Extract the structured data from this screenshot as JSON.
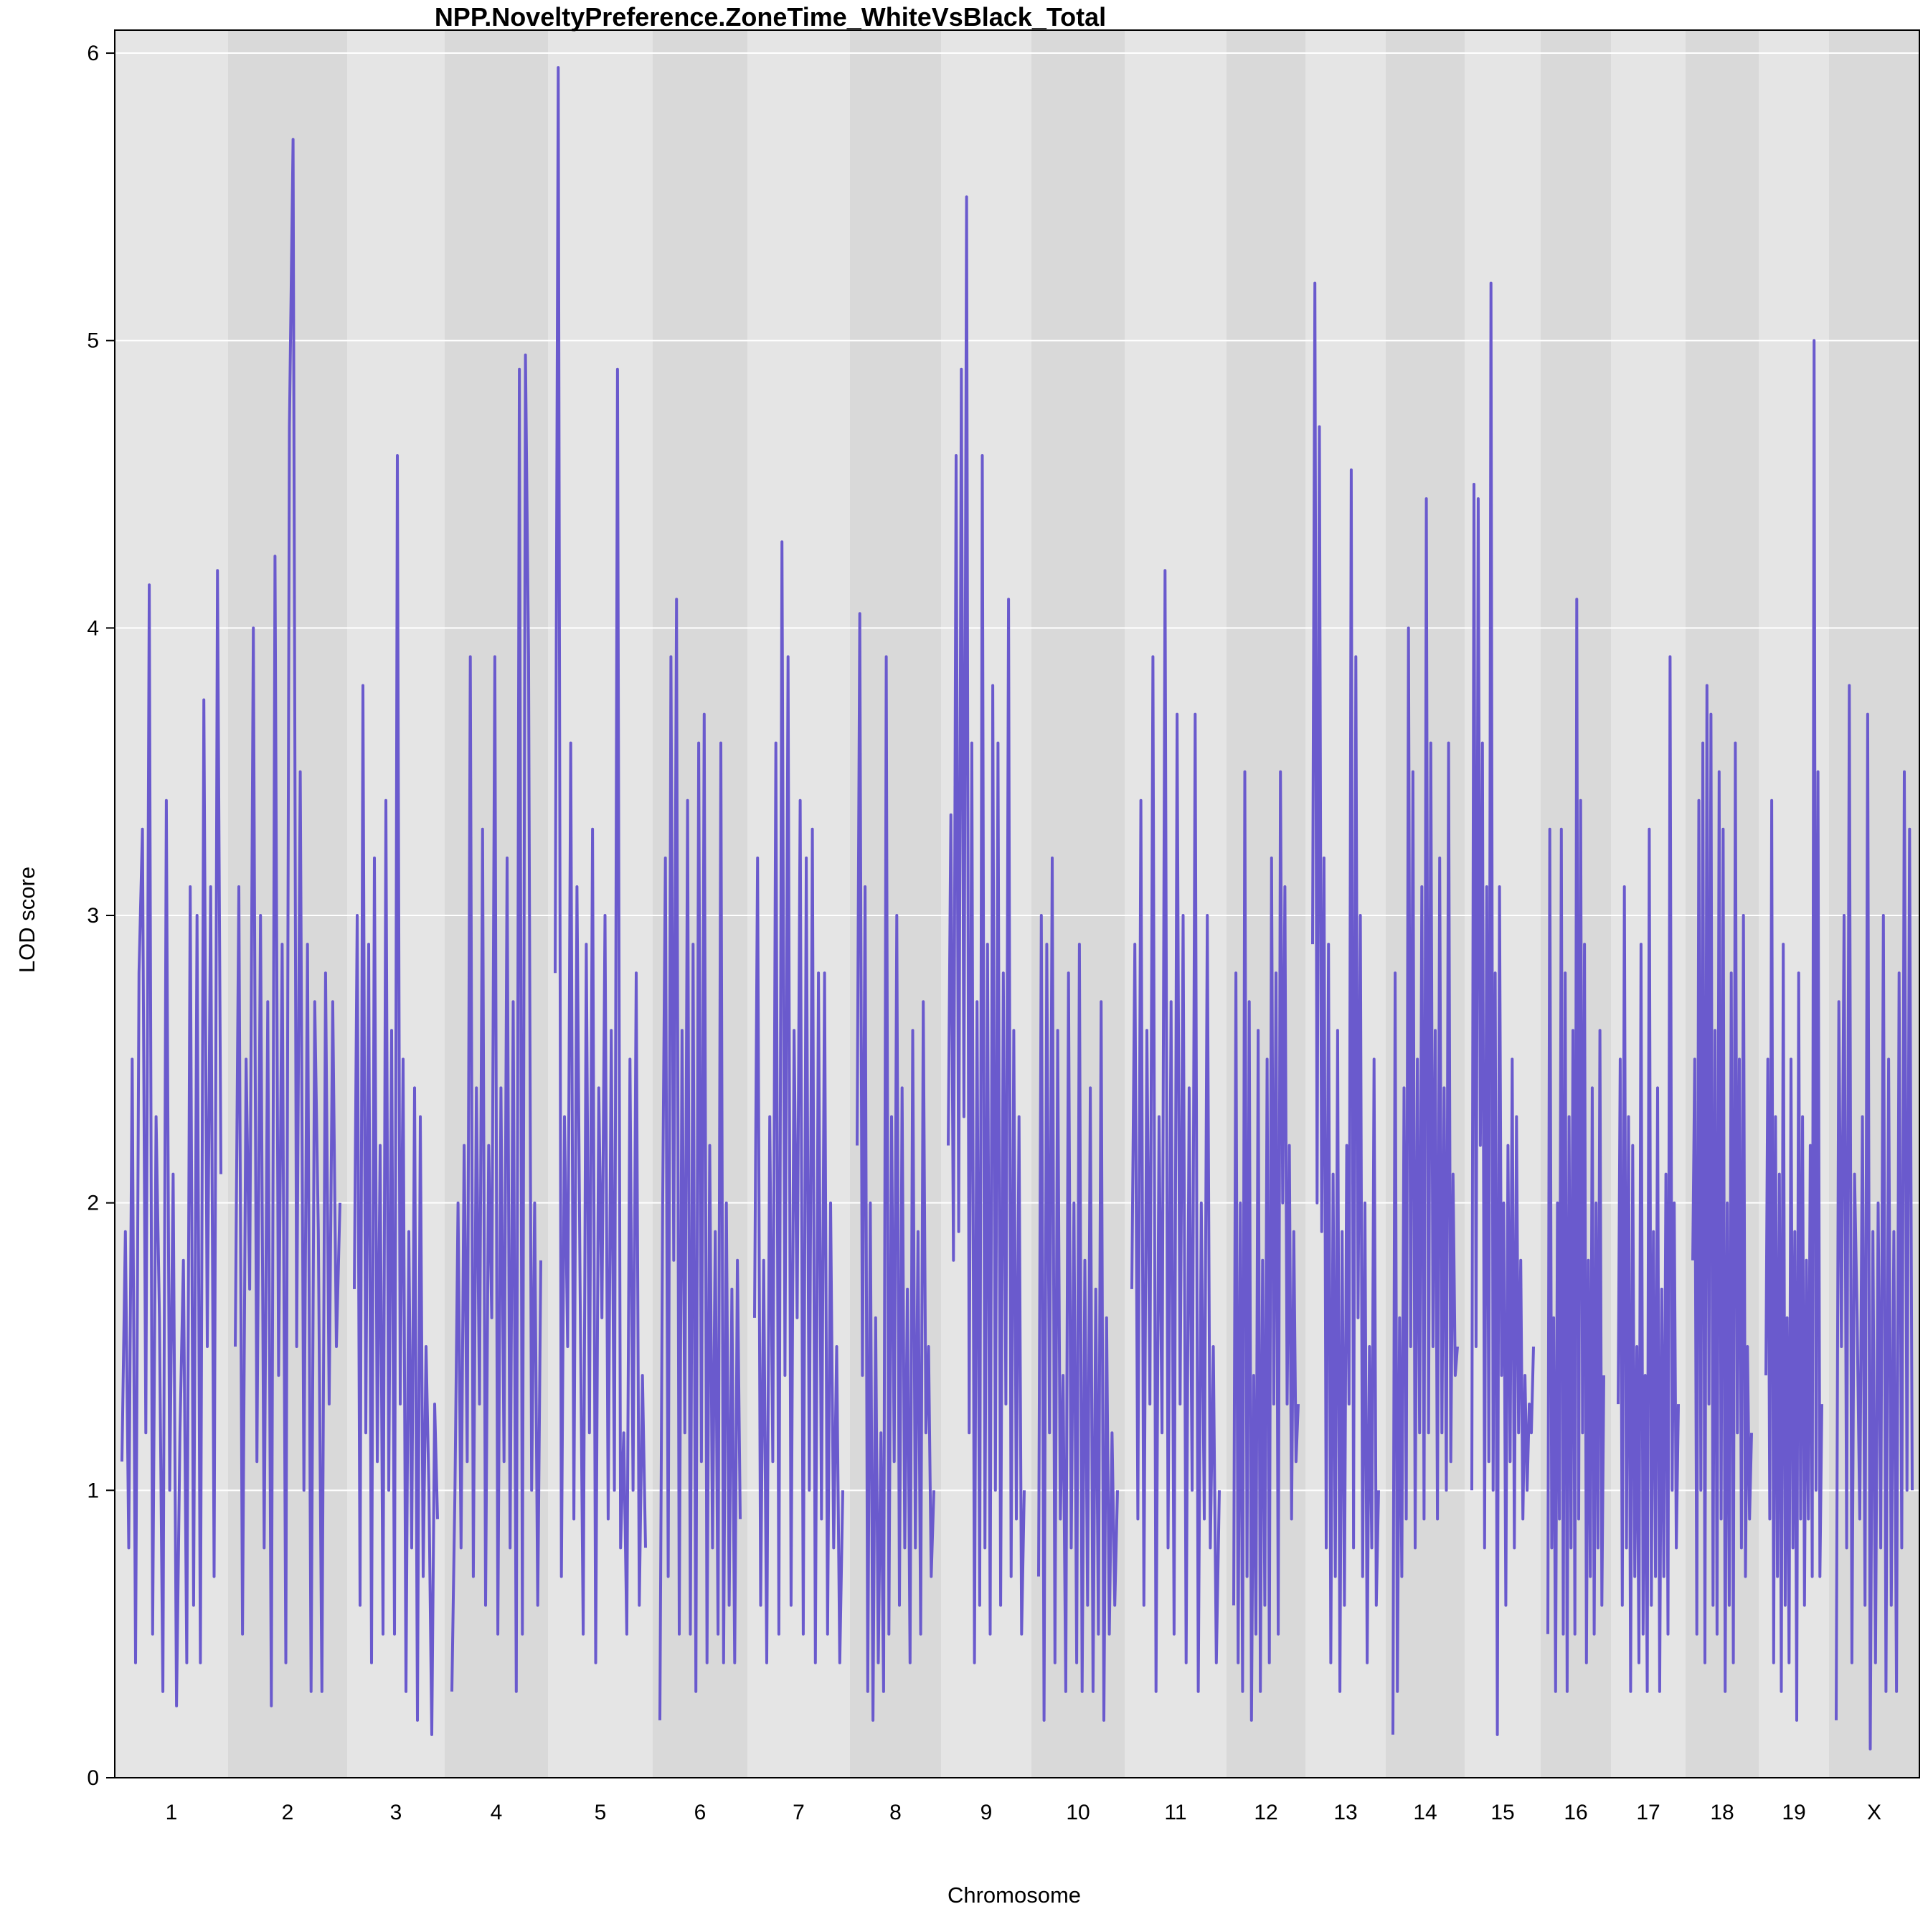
{
  "chart_data": {
    "type": "line",
    "title": "NPP.NoveltyPreference.ZoneTime_WhiteVsBlack_Total",
    "xlabel": "Chromosome",
    "ylabel": "LOD score",
    "ylim": [
      0,
      6.08
    ],
    "y_ticks": [
      "0",
      "1",
      "2",
      "3",
      "4",
      "5",
      "6"
    ],
    "grid": true,
    "background_bands": [
      "#e5e5e5",
      "#d9d9d9"
    ],
    "grid_color": "#ffffff",
    "line_color": "#6a5acd",
    "categories": [
      "1",
      "2",
      "3",
      "4",
      "5",
      "6",
      "7",
      "8",
      "9",
      "10",
      "11",
      "12",
      "13",
      "14",
      "15",
      "16",
      "17",
      "18",
      "19",
      "X"
    ],
    "series": [
      {
        "values": [
          [
            1.1,
            1.9,
            0.8,
            2.5,
            0.4,
            2.8,
            3.3,
            1.2,
            4.15,
            0.5,
            2.3,
            1.6,
            0.3,
            3.4,
            1.0,
            2.1,
            0.25,
            1.2,
            1.8,
            0.4,
            3.1,
            0.6,
            3.0,
            0.4,
            3.75,
            1.5,
            3.1,
            0.7,
            4.2,
            2.1
          ],
          [
            1.5,
            3.1,
            0.5,
            2.5,
            1.7,
            4.0,
            1.1,
            3.0,
            0.8,
            2.7,
            0.25,
            4.25,
            1.4,
            2.9,
            0.4,
            4.7,
            5.7,
            1.5,
            3.5,
            1.0,
            2.9,
            0.3,
            2.7,
            1.9,
            0.3,
            2.8,
            1.3,
            2.7,
            1.5,
            2.0
          ],
          [
            1.7,
            3.0,
            0.6,
            3.8,
            1.2,
            2.9,
            0.4,
            3.2,
            1.1,
            2.2,
            0.5,
            3.4,
            1.0,
            2.6,
            0.5,
            4.6,
            1.3,
            2.5,
            0.3,
            1.9,
            0.8,
            2.4,
            0.2,
            2.3,
            0.7,
            1.5,
            1.0,
            0.15,
            1.3,
            0.9
          ],
          [
            0.3,
            1.0,
            2.0,
            0.8,
            2.2,
            1.1,
            3.9,
            0.7,
            2.4,
            1.3,
            3.3,
            0.6,
            2.2,
            1.6,
            3.9,
            0.5,
            2.4,
            1.1,
            3.2,
            0.8,
            2.7,
            0.3,
            4.9,
            0.5,
            4.95,
            3.9,
            1.0,
            2.0,
            0.6,
            1.8
          ],
          [
            2.8,
            5.95,
            0.7,
            2.3,
            1.5,
            3.6,
            0.9,
            3.1,
            1.7,
            0.5,
            2.9,
            1.2,
            3.3,
            0.4,
            2.4,
            1.6,
            3.0,
            0.9,
            2.6,
            1.0,
            4.9,
            0.8,
            1.2,
            0.5,
            2.5,
            1.0,
            2.8,
            0.6,
            1.4,
            0.8
          ],
          [
            0.2,
            2.0,
            3.2,
            0.7,
            3.9,
            1.8,
            4.1,
            0.5,
            2.6,
            1.2,
            3.4,
            0.5,
            2.9,
            0.3,
            3.6,
            1.1,
            3.7,
            0.4,
            2.2,
            0.8,
            1.9,
            0.5,
            3.6,
            0.4,
            2.0,
            0.6,
            1.7,
            0.4,
            1.8,
            0.9
          ],
          [
            1.6,
            3.2,
            0.6,
            1.8,
            0.4,
            2.3,
            1.1,
            3.6,
            0.5,
            4.3,
            1.4,
            3.9,
            0.6,
            2.6,
            1.6,
            3.4,
            0.5,
            3.2,
            1.0,
            3.3,
            0.4,
            2.8,
            0.9,
            2.8,
            0.5,
            2.0,
            0.8,
            1.5,
            0.4,
            1.0
          ],
          [
            2.2,
            4.05,
            1.4,
            3.1,
            0.3,
            2.0,
            0.2,
            1.6,
            0.4,
            1.2,
            0.3,
            3.9,
            0.5,
            2.3,
            1.1,
            3.0,
            0.6,
            2.4,
            0.8,
            1.7,
            0.4,
            2.6,
            0.8,
            1.9,
            0.5,
            2.7,
            1.2,
            1.5,
            0.7,
            1.0
          ],
          [
            2.2,
            3.35,
            1.8,
            4.6,
            1.9,
            4.9,
            2.3,
            5.5,
            1.2,
            3.6,
            0.4,
            2.7,
            0.6,
            4.6,
            0.8,
            2.9,
            0.5,
            3.8,
            1.0,
            3.6,
            0.6,
            2.8,
            1.3,
            4.1,
            0.7,
            2.6,
            0.9,
            2.3,
            0.5,
            1.0
          ],
          [
            0.7,
            3.0,
            0.2,
            2.9,
            1.2,
            3.2,
            0.4,
            2.6,
            0.9,
            1.4,
            0.3,
            2.8,
            0.8,
            2.0,
            0.4,
            2.9,
            0.3,
            1.8,
            0.6,
            2.4,
            0.3,
            1.7,
            0.5,
            2.7,
            0.2,
            1.6,
            0.5,
            1.2,
            0.6,
            1.0
          ],
          [
            1.7,
            2.9,
            0.9,
            3.4,
            0.6,
            2.6,
            1.3,
            3.9,
            0.3,
            2.3,
            1.2,
            4.2,
            0.8,
            2.7,
            0.5,
            3.7,
            1.3,
            3.0,
            0.4,
            2.4,
            1.0,
            3.7,
            0.3,
            2.0,
            0.9,
            3.0,
            0.8,
            1.5,
            0.4,
            1.0
          ],
          [
            0.6,
            2.8,
            0.4,
            2.0,
            0.3,
            3.5,
            0.7,
            2.7,
            0.2,
            1.4,
            0.5,
            2.6,
            0.3,
            1.8,
            0.6,
            2.5,
            0.4,
            3.2,
            1.3,
            2.8,
            0.5,
            3.5,
            2.0,
            3.1,
            1.3,
            2.2,
            0.9,
            1.9,
            1.1,
            1.3
          ],
          [
            2.9,
            5.2,
            2.0,
            4.7,
            1.9,
            3.2,
            0.8,
            2.9,
            0.4,
            2.1,
            0.7,
            2.6,
            0.3,
            1.9,
            0.6,
            2.2,
            1.3,
            4.55,
            0.8,
            3.9,
            1.6,
            3.0,
            0.7,
            2.0,
            0.4,
            1.5,
            0.8,
            2.5,
            0.6,
            1.0
          ],
          [
            0.15,
            2.8,
            0.3,
            1.6,
            0.7,
            2.4,
            0.9,
            4.0,
            1.5,
            3.5,
            0.8,
            2.5,
            1.2,
            3.1,
            0.9,
            4.45,
            1.2,
            3.6,
            1.5,
            2.6,
            0.9,
            3.2,
            1.2,
            2.4,
            1.0,
            3.6,
            1.1,
            2.1,
            1.4,
            1.5
          ],
          [
            1.0,
            4.5,
            1.5,
            4.45,
            2.2,
            3.6,
            0.8,
            3.1,
            1.1,
            5.2,
            1.0,
            2.8,
            0.15,
            3.1,
            1.4,
            2.0,
            0.6,
            2.2,
            1.1,
            2.5,
            0.8,
            2.3,
            1.2,
            1.8,
            0.9,
            1.4,
            1.0,
            1.3,
            1.2,
            1.5
          ],
          [
            0.5,
            3.3,
            0.8,
            1.6,
            0.3,
            2.0,
            0.9,
            3.3,
            0.5,
            2.8,
            0.3,
            2.3,
            0.8,
            2.6,
            0.5,
            4.1,
            0.9,
            3.4,
            1.2,
            2.9,
            0.4,
            1.8,
            0.7,
            2.4,
            0.5,
            2.0,
            0.8,
            2.6,
            0.6,
            1.4
          ],
          [
            1.3,
            2.5,
            0.6,
            3.1,
            0.8,
            2.3,
            0.3,
            2.2,
            0.7,
            1.5,
            0.4,
            2.9,
            0.5,
            1.4,
            0.3,
            3.3,
            0.6,
            1.9,
            0.7,
            2.4,
            0.3,
            1.7,
            0.7,
            2.1,
            0.5,
            3.9,
            1.0,
            2.0,
            0.8,
            1.3
          ],
          [
            1.8,
            2.5,
            0.5,
            3.4,
            1.0,
            3.6,
            0.4,
            3.8,
            1.3,
            3.7,
            0.6,
            2.6,
            0.5,
            3.5,
            0.9,
            3.3,
            0.3,
            2.0,
            0.6,
            2.8,
            0.4,
            3.6,
            1.2,
            2.5,
            0.8,
            3.0,
            0.7,
            1.5,
            0.9,
            1.2
          ],
          [
            1.4,
            2.5,
            0.9,
            3.4,
            0.4,
            2.3,
            0.7,
            2.1,
            0.3,
            2.9,
            0.6,
            1.6,
            0.4,
            2.5,
            0.8,
            1.9,
            0.2,
            2.8,
            0.9,
            2.3,
            0.6,
            1.8,
            0.9,
            2.2,
            0.7,
            5.0,
            1.0,
            3.5,
            0.7,
            1.3
          ],
          [
            0.2,
            2.7,
            1.5,
            3.0,
            0.8,
            3.8,
            0.4,
            2.1,
            1.6,
            0.9,
            2.3,
            0.6,
            3.7,
            0.1,
            1.9,
            0.4,
            2.0,
            0.8,
            3.0,
            0.3,
            2.5,
            0.6,
            1.9,
            0.3,
            2.8,
            0.8,
            3.5,
            1.0,
            3.3,
            1.0
          ]
        ]
      }
    ]
  }
}
